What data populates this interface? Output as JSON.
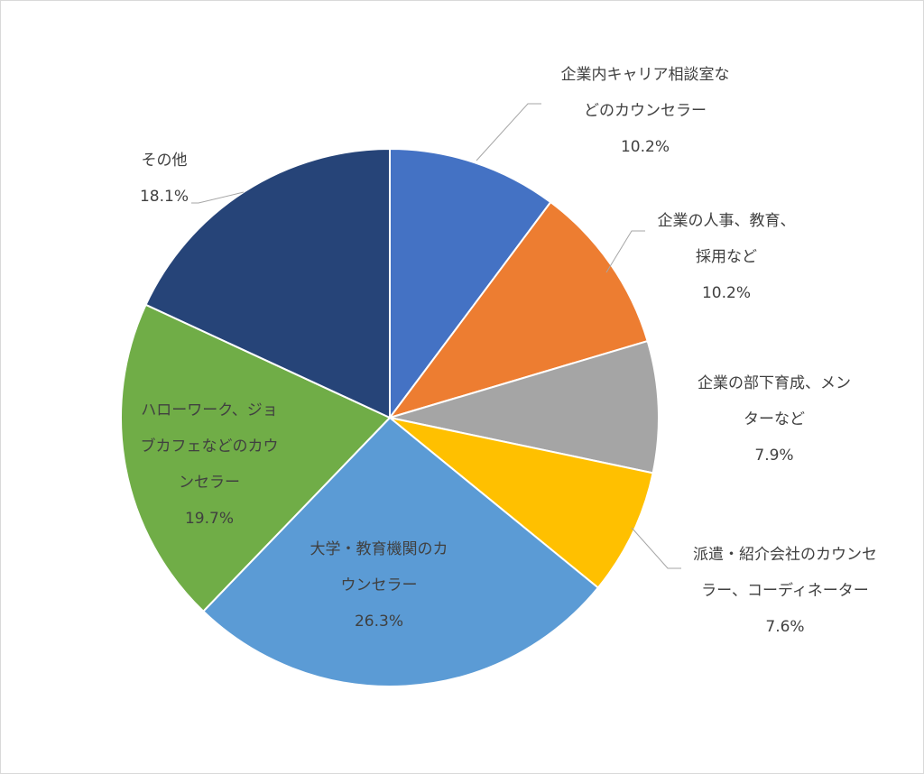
{
  "chart_data": {
    "type": "pie",
    "title": "",
    "start_angle_deg": 0,
    "direction": "clockwise",
    "slices": [
      {
        "label_lines": [
          "企業内キャリア相談室な",
          "どのカウンセラー"
        ],
        "value": 10.2,
        "value_label": "10.2%",
        "color": "#4472C4"
      },
      {
        "label_lines": [
          "企業の人事、教育、",
          "採用など"
        ],
        "value": 10.2,
        "value_label": "10.2%",
        "color": "#ED7D31"
      },
      {
        "label_lines": [
          "企業の部下育成、メン",
          "ターなど"
        ],
        "value": 7.9,
        "value_label": "7.9%",
        "color": "#A5A5A5"
      },
      {
        "label_lines": [
          "派遣・紹介会社のカウンセ",
          "ラー、コーディネーター"
        ],
        "value": 7.6,
        "value_label": "7.6%",
        "color": "#FFC000"
      },
      {
        "label_lines": [
          "大学・教育機関のカ",
          "ウンセラー"
        ],
        "value": 26.3,
        "value_label": "26.3%",
        "color": "#5B9BD5"
      },
      {
        "label_lines": [
          "ハローワーク、ジョ",
          "ブカフェなどのカウ",
          "ンセラー"
        ],
        "value": 19.7,
        "value_label": "19.7%",
        "color": "#70AD47"
      },
      {
        "label_lines": [
          "その他"
        ],
        "value": 18.1,
        "value_label": "18.1%",
        "color": "#264478"
      }
    ]
  }
}
